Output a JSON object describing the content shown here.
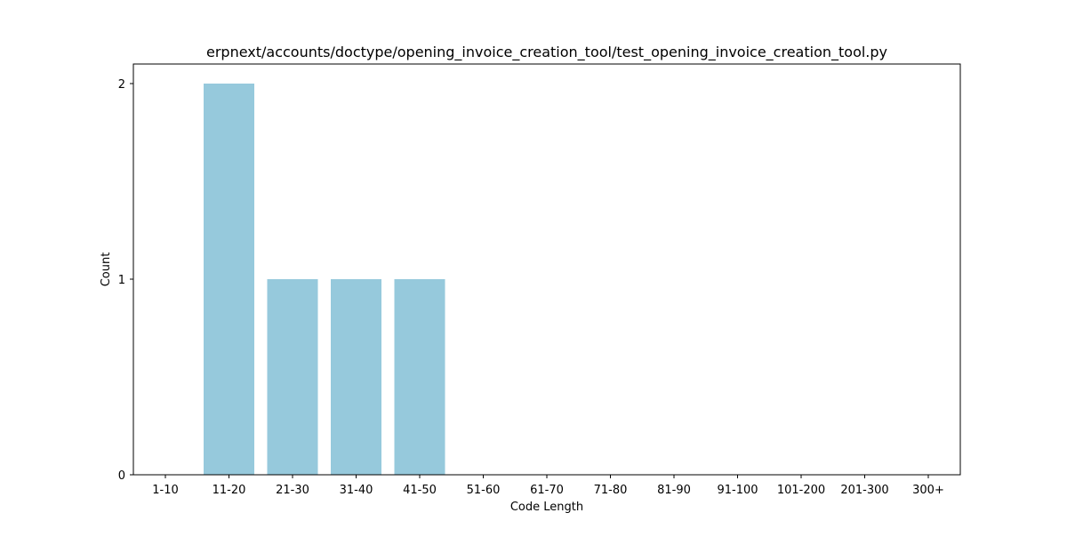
{
  "chart_data": {
    "type": "bar",
    "title": "erpnext/accounts/doctype/opening_invoice_creation_tool/test_opening_invoice_creation_tool.py",
    "xlabel": "Code Length",
    "ylabel": "Count",
    "categories": [
      "1-10",
      "11-20",
      "21-30",
      "31-40",
      "41-50",
      "51-60",
      "61-70",
      "71-80",
      "81-90",
      "91-100",
      "101-200",
      "201-300",
      "300+"
    ],
    "values": [
      0,
      2,
      1,
      1,
      1,
      0,
      0,
      0,
      0,
      0,
      0,
      0,
      0
    ],
    "ylim": [
      0,
      2.1
    ],
    "yticks": [
      0,
      1,
      2
    ],
    "bar_color": "#96c9dc",
    "grid": false,
    "legend": "none"
  }
}
